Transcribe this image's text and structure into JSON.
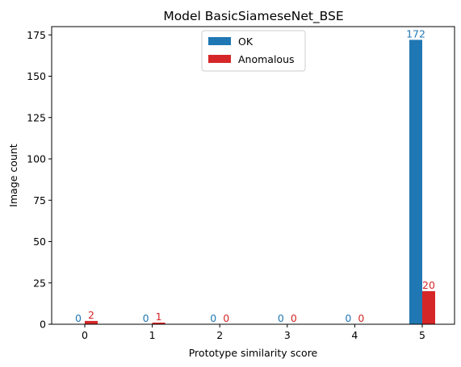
{
  "chart_data": {
    "type": "bar",
    "title": "Model BasicSiameseNet_BSE",
    "xlabel": "Prototype similarity score",
    "ylabel": "Image count",
    "categories": [
      "0",
      "1",
      "2",
      "3",
      "4",
      "5"
    ],
    "series": [
      {
        "name": "OK",
        "values": [
          0,
          0,
          0,
          0,
          0,
          172
        ],
        "color": "#1f77b4"
      },
      {
        "name": "Anomalous",
        "values": [
          2,
          1,
          0,
          0,
          0,
          20
        ],
        "color": "#d62728"
      }
    ],
    "ylim": [
      0,
      180
    ],
    "yticks": [
      0,
      25,
      50,
      75,
      100,
      125,
      150,
      175
    ],
    "grid": false,
    "legend_position": "top-center"
  }
}
